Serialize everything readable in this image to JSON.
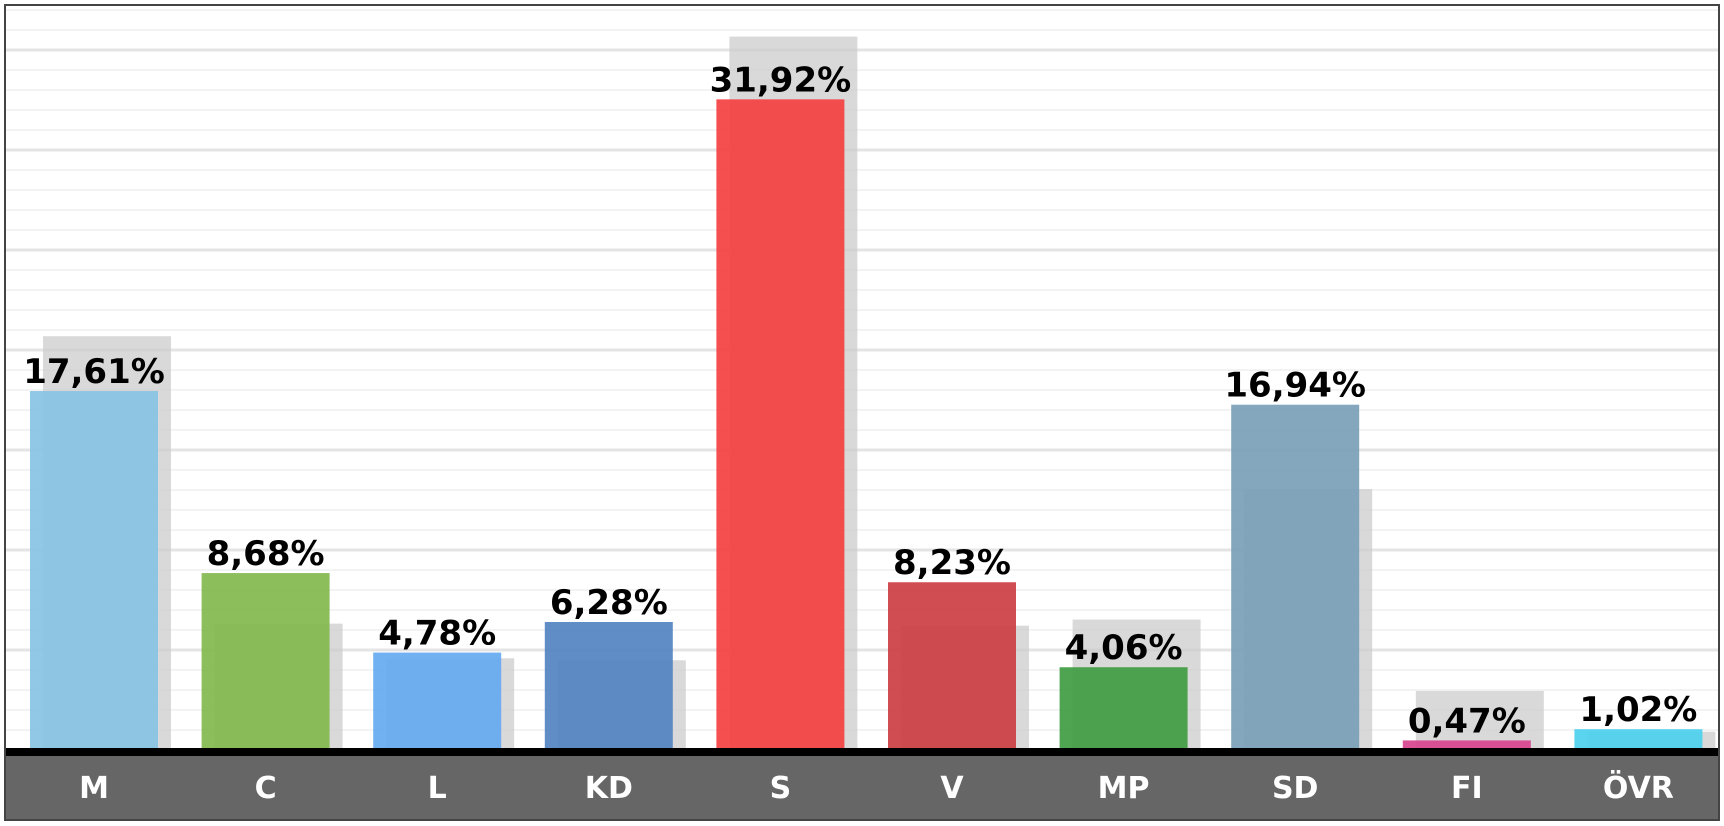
{
  "chart_data": {
    "type": "bar",
    "categories": [
      "M",
      "C",
      "L",
      "KD",
      "S",
      "V",
      "MP",
      "SD",
      "FI",
      "ÖVR"
    ],
    "series": [
      {
        "values": [
          17.61,
          8.68,
          4.78,
          6.28,
          31.92,
          8.23,
          4.06,
          16.94,
          0.47,
          1.02
        ],
        "value_labels": [
          "17,61%",
          "8,68%",
          "4,78%",
          "6,28%",
          "31,92%",
          "8,23%",
          "4,06%",
          "16,94%",
          "0,47%",
          "1,02%"
        ],
        "colors": [
          "#87C3E3",
          "#83B84E",
          "#66AAF0",
          "#5483C2",
          "#F54040",
          "#CC3F43",
          "#3F9C41",
          "#7BA0B9",
          "#D8448E",
          "#4CD0EE"
        ]
      },
      {
        "values": [
          20.3,
          6.2,
          4.5,
          4.4,
          35.0,
          6.1,
          6.4,
          12.8,
          2.9,
          0.9
        ],
        "color": "#cccccc"
      }
    ],
    "ylim": [
      0,
      36.5
    ],
    "grid": true
  }
}
